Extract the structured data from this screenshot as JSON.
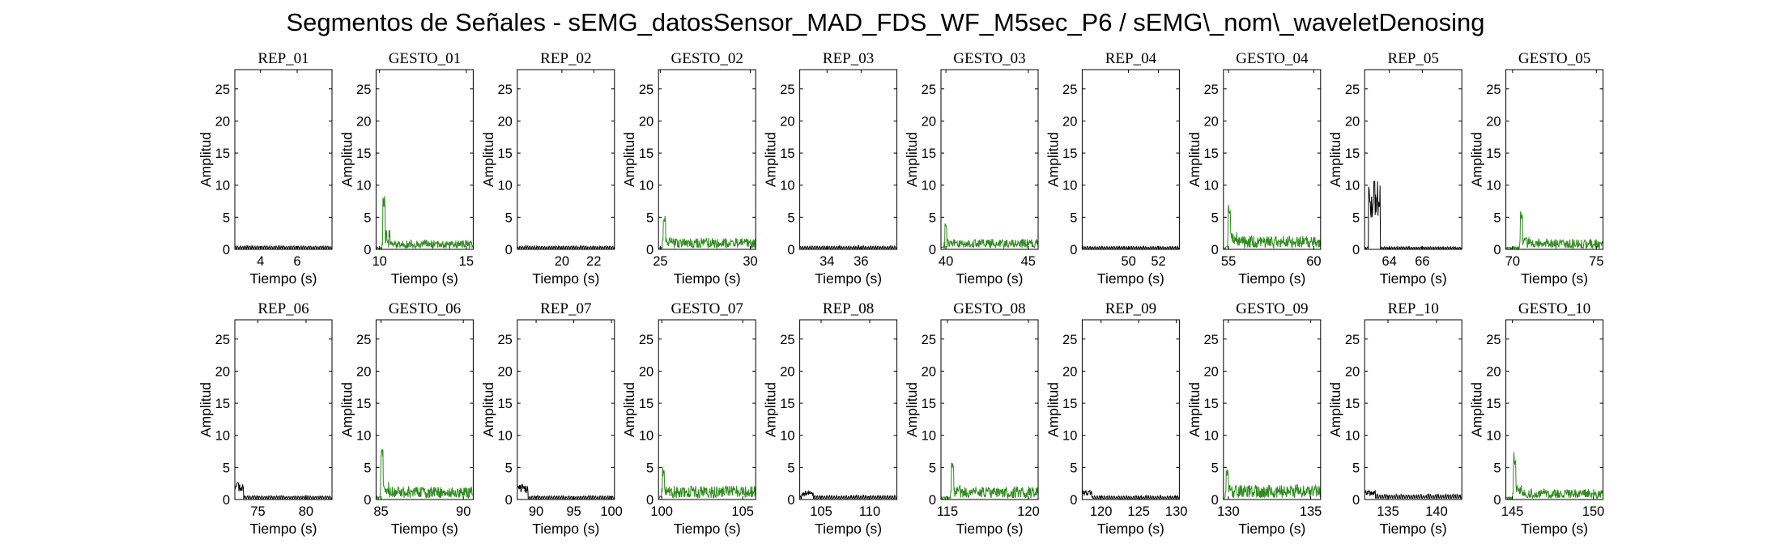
{
  "figure": {
    "suptitle": "Segmentos de Señales - sEMG_datosSensor_MAD_FDS_WF_M5sec_P6 / sEMG\\_nom\\_waveletDenosing"
  },
  "colors": {
    "rep": "#000000",
    "gesto": "#2e8b1e",
    "axes": "#000000",
    "background": "#ffffff"
  },
  "chart_data": [
    {
      "type": "line",
      "title": "REP_01",
      "kind": "rep",
      "xlabel": "Tiempo (s)",
      "ylabel": "Amplitud",
      "xlim": [
        2.6,
        7.9
      ],
      "ylim": [
        0,
        28
      ],
      "xticks": [
        4,
        6
      ],
      "yticks": [
        0,
        5,
        10,
        15,
        20,
        25
      ],
      "grid": false,
      "peak": 0.6,
      "peak_at": 0.5,
      "base": 0.45
    },
    {
      "type": "line",
      "title": "GESTO_01",
      "kind": "gesto",
      "xlabel": "Tiempo (s)",
      "ylabel": "Amplitud",
      "xlim": [
        9.8,
        15.4
      ],
      "ylim": [
        0,
        28
      ],
      "xticks": [
        10,
        15
      ],
      "yticks": [
        0,
        5,
        10,
        15,
        20,
        25
      ],
      "grid": false,
      "peak": 8.7,
      "peak_at": 0.08,
      "base": 0.8
    },
    {
      "type": "line",
      "title": "REP_02",
      "kind": "rep",
      "xlabel": "Tiempo (s)",
      "ylabel": "Amplitud",
      "xlim": [
        17.2,
        23.3
      ],
      "ylim": [
        0,
        28
      ],
      "xticks": [
        20,
        22
      ],
      "yticks": [
        0,
        5,
        10,
        15,
        20,
        25
      ],
      "grid": false,
      "peak": 0.6,
      "peak_at": 0.5,
      "base": 0.45
    },
    {
      "type": "line",
      "title": "GESTO_02",
      "kind": "gesto",
      "xlabel": "Tiempo (s)",
      "ylabel": "Amplitud",
      "xlim": [
        24.9,
        30.3
      ],
      "ylim": [
        0,
        28
      ],
      "xticks": [
        25,
        30
      ],
      "yticks": [
        0,
        5,
        10,
        15,
        20,
        25
      ],
      "grid": false,
      "peak": 5.2,
      "peak_at": 0.06,
      "base": 1.0
    },
    {
      "type": "line",
      "title": "REP_03",
      "kind": "rep",
      "xlabel": "Tiempo (s)",
      "ylabel": "Amplitud",
      "xlim": [
        32.4,
        38.1
      ],
      "ylim": [
        0,
        28
      ],
      "xticks": [
        34,
        36
      ],
      "yticks": [
        0,
        5,
        10,
        15,
        20,
        25
      ],
      "grid": false,
      "peak": 0.6,
      "peak_at": 0.5,
      "base": 0.45
    },
    {
      "type": "line",
      "title": "GESTO_03",
      "kind": "gesto",
      "xlabel": "Tiempo (s)",
      "ylabel": "Amplitud",
      "xlim": [
        39.7,
        45.6
      ],
      "ylim": [
        0,
        28
      ],
      "xticks": [
        40,
        45
      ],
      "yticks": [
        0,
        5,
        10,
        15,
        20,
        25
      ],
      "grid": false,
      "peak": 4.3,
      "peak_at": 0.05,
      "base": 0.9
    },
    {
      "type": "line",
      "title": "REP_04",
      "kind": "rep",
      "xlabel": "Tiempo (s)",
      "ylabel": "Amplitud",
      "xlim": [
        46.9,
        53.4
      ],
      "ylim": [
        0,
        28
      ],
      "xticks": [
        50,
        52
      ],
      "yticks": [
        0,
        5,
        10,
        15,
        20,
        25
      ],
      "grid": false,
      "peak": 0.5,
      "peak_at": 0.5,
      "base": 0.4
    },
    {
      "type": "line",
      "title": "GESTO_04",
      "kind": "gesto",
      "xlabel": "Tiempo (s)",
      "ylabel": "Amplitud",
      "xlim": [
        54.7,
        60.4
      ],
      "ylim": [
        0,
        28
      ],
      "xticks": [
        55,
        60
      ],
      "yticks": [
        0,
        5,
        10,
        15,
        20,
        25
      ],
      "grid": false,
      "peak": 7.8,
      "peak_at": 0.06,
      "base": 1.2
    },
    {
      "type": "line",
      "title": "REP_05",
      "kind": "rep",
      "xlabel": "Tiempo (s)",
      "ylabel": "Amplitud",
      "xlim": [
        62.5,
        68.4
      ],
      "ylim": [
        0,
        28
      ],
      "xticks": [
        64,
        66
      ],
      "yticks": [
        0,
        5,
        10,
        15,
        20,
        25
      ],
      "grid": false,
      "peak": 10.6,
      "peak_at": 0.1,
      "base": 0.35
    },
    {
      "type": "line",
      "title": "GESTO_05",
      "kind": "gesto",
      "xlabel": "Tiempo (s)",
      "ylabel": "Amplitud",
      "xlim": [
        69.6,
        75.4
      ],
      "ylim": [
        0,
        28
      ],
      "xticks": [
        70,
        75
      ],
      "yticks": [
        0,
        5,
        10,
        15,
        20,
        25
      ],
      "grid": false,
      "peak": 6.1,
      "peak_at": 0.16,
      "base": 0.9
    },
    {
      "type": "line",
      "title": "REP_06",
      "kind": "rep",
      "xlabel": "Tiempo (s)",
      "ylabel": "Amplitud",
      "xlim": [
        72.6,
        82.7
      ],
      "ylim": [
        0,
        28
      ],
      "xticks": [
        75,
        80
      ],
      "yticks": [
        0,
        5,
        10,
        15,
        20,
        25
      ],
      "grid": false,
      "peak": 2.6,
      "peak_at": 0.03,
      "base": 0.5
    },
    {
      "type": "line",
      "title": "GESTO_06",
      "kind": "gesto",
      "xlabel": "Tiempo (s)",
      "ylabel": "Amplitud",
      "xlim": [
        84.7,
        90.6
      ],
      "ylim": [
        0,
        28
      ],
      "xticks": [
        85,
        90
      ],
      "yticks": [
        0,
        5,
        10,
        15,
        20,
        25
      ],
      "grid": false,
      "peak": 8.5,
      "peak_at": 0.06,
      "base": 1.1
    },
    {
      "type": "line",
      "title": "REP_07",
      "kind": "rep",
      "xlabel": "Tiempo (s)",
      "ylabel": "Amplitud",
      "xlim": [
        87.5,
        100.4
      ],
      "ylim": [
        0,
        28
      ],
      "xticks": [
        90,
        95,
        100
      ],
      "yticks": [
        0,
        5,
        10,
        15,
        20,
        25
      ],
      "grid": false,
      "peak": 2.3,
      "peak_at": 0.05,
      "base": 0.5
    },
    {
      "type": "line",
      "title": "GESTO_07",
      "kind": "gesto",
      "xlabel": "Tiempo (s)",
      "ylabel": "Amplitud",
      "xlim": [
        99.8,
        105.8
      ],
      "ylim": [
        0,
        28
      ],
      "xticks": [
        100,
        105
      ],
      "yticks": [
        0,
        5,
        10,
        15,
        20,
        25
      ],
      "grid": false,
      "peak": 5.1,
      "peak_at": 0.05,
      "base": 1.2
    },
    {
      "type": "line",
      "title": "REP_08",
      "kind": "rep",
      "xlabel": "Tiempo (s)",
      "ylabel": "Amplitud",
      "xlim": [
        102.8,
        112.8
      ],
      "ylim": [
        0,
        28
      ],
      "xticks": [
        105,
        110
      ],
      "yticks": [
        0,
        5,
        10,
        15,
        20,
        25
      ],
      "grid": false,
      "peak": 1.4,
      "peak_at": 0.08,
      "base": 0.55
    },
    {
      "type": "line",
      "title": "GESTO_08",
      "kind": "gesto",
      "xlabel": "Tiempo (s)",
      "ylabel": "Amplitud",
      "xlim": [
        114.6,
        120.6
      ],
      "ylim": [
        0,
        28
      ],
      "xticks": [
        115,
        120
      ],
      "yticks": [
        0,
        5,
        10,
        15,
        20,
        25
      ],
      "grid": false,
      "peak": 6.4,
      "peak_at": 0.12,
      "base": 1.1
    },
    {
      "type": "line",
      "title": "REP_09",
      "kind": "rep",
      "xlabel": "Tiempo (s)",
      "ylabel": "Amplitud",
      "xlim": [
        117.5,
        130.4
      ],
      "ylim": [
        0,
        28
      ],
      "xticks": [
        120,
        125,
        130
      ],
      "yticks": [
        0,
        5,
        10,
        15,
        20,
        25
      ],
      "grid": false,
      "peak": 1.6,
      "peak_at": 0.04,
      "base": 0.5
    },
    {
      "type": "line",
      "title": "GESTO_09",
      "kind": "gesto",
      "xlabel": "Tiempo (s)",
      "ylabel": "Amplitud",
      "xlim": [
        129.7,
        135.6
      ],
      "ylim": [
        0,
        28
      ],
      "xticks": [
        130,
        135
      ],
      "yticks": [
        0,
        5,
        10,
        15,
        20,
        25
      ],
      "grid": false,
      "peak": 4.7,
      "peak_at": 0.04,
      "base": 1.3
    },
    {
      "type": "line",
      "title": "REP_10",
      "kind": "rep",
      "xlabel": "Tiempo (s)",
      "ylabel": "Amplitud",
      "xlim": [
        132.6,
        142.6
      ],
      "ylim": [
        0,
        28
      ],
      "xticks": [
        135,
        140
      ],
      "yticks": [
        0,
        5,
        10,
        15,
        20,
        25
      ],
      "grid": false,
      "peak": 1.6,
      "peak_at": 0.05,
      "base": 0.7
    },
    {
      "type": "line",
      "title": "GESTO_10",
      "kind": "gesto",
      "xlabel": "Tiempo (s)",
      "ylabel": "Amplitud",
      "xlim": [
        144.6,
        150.6
      ],
      "ylim": [
        0,
        28
      ],
      "xticks": [
        145,
        150
      ],
      "yticks": [
        0,
        5,
        10,
        15,
        20,
        25
      ],
      "grid": false,
      "peak": 7.4,
      "peak_at": 0.09,
      "base": 0.9
    }
  ]
}
